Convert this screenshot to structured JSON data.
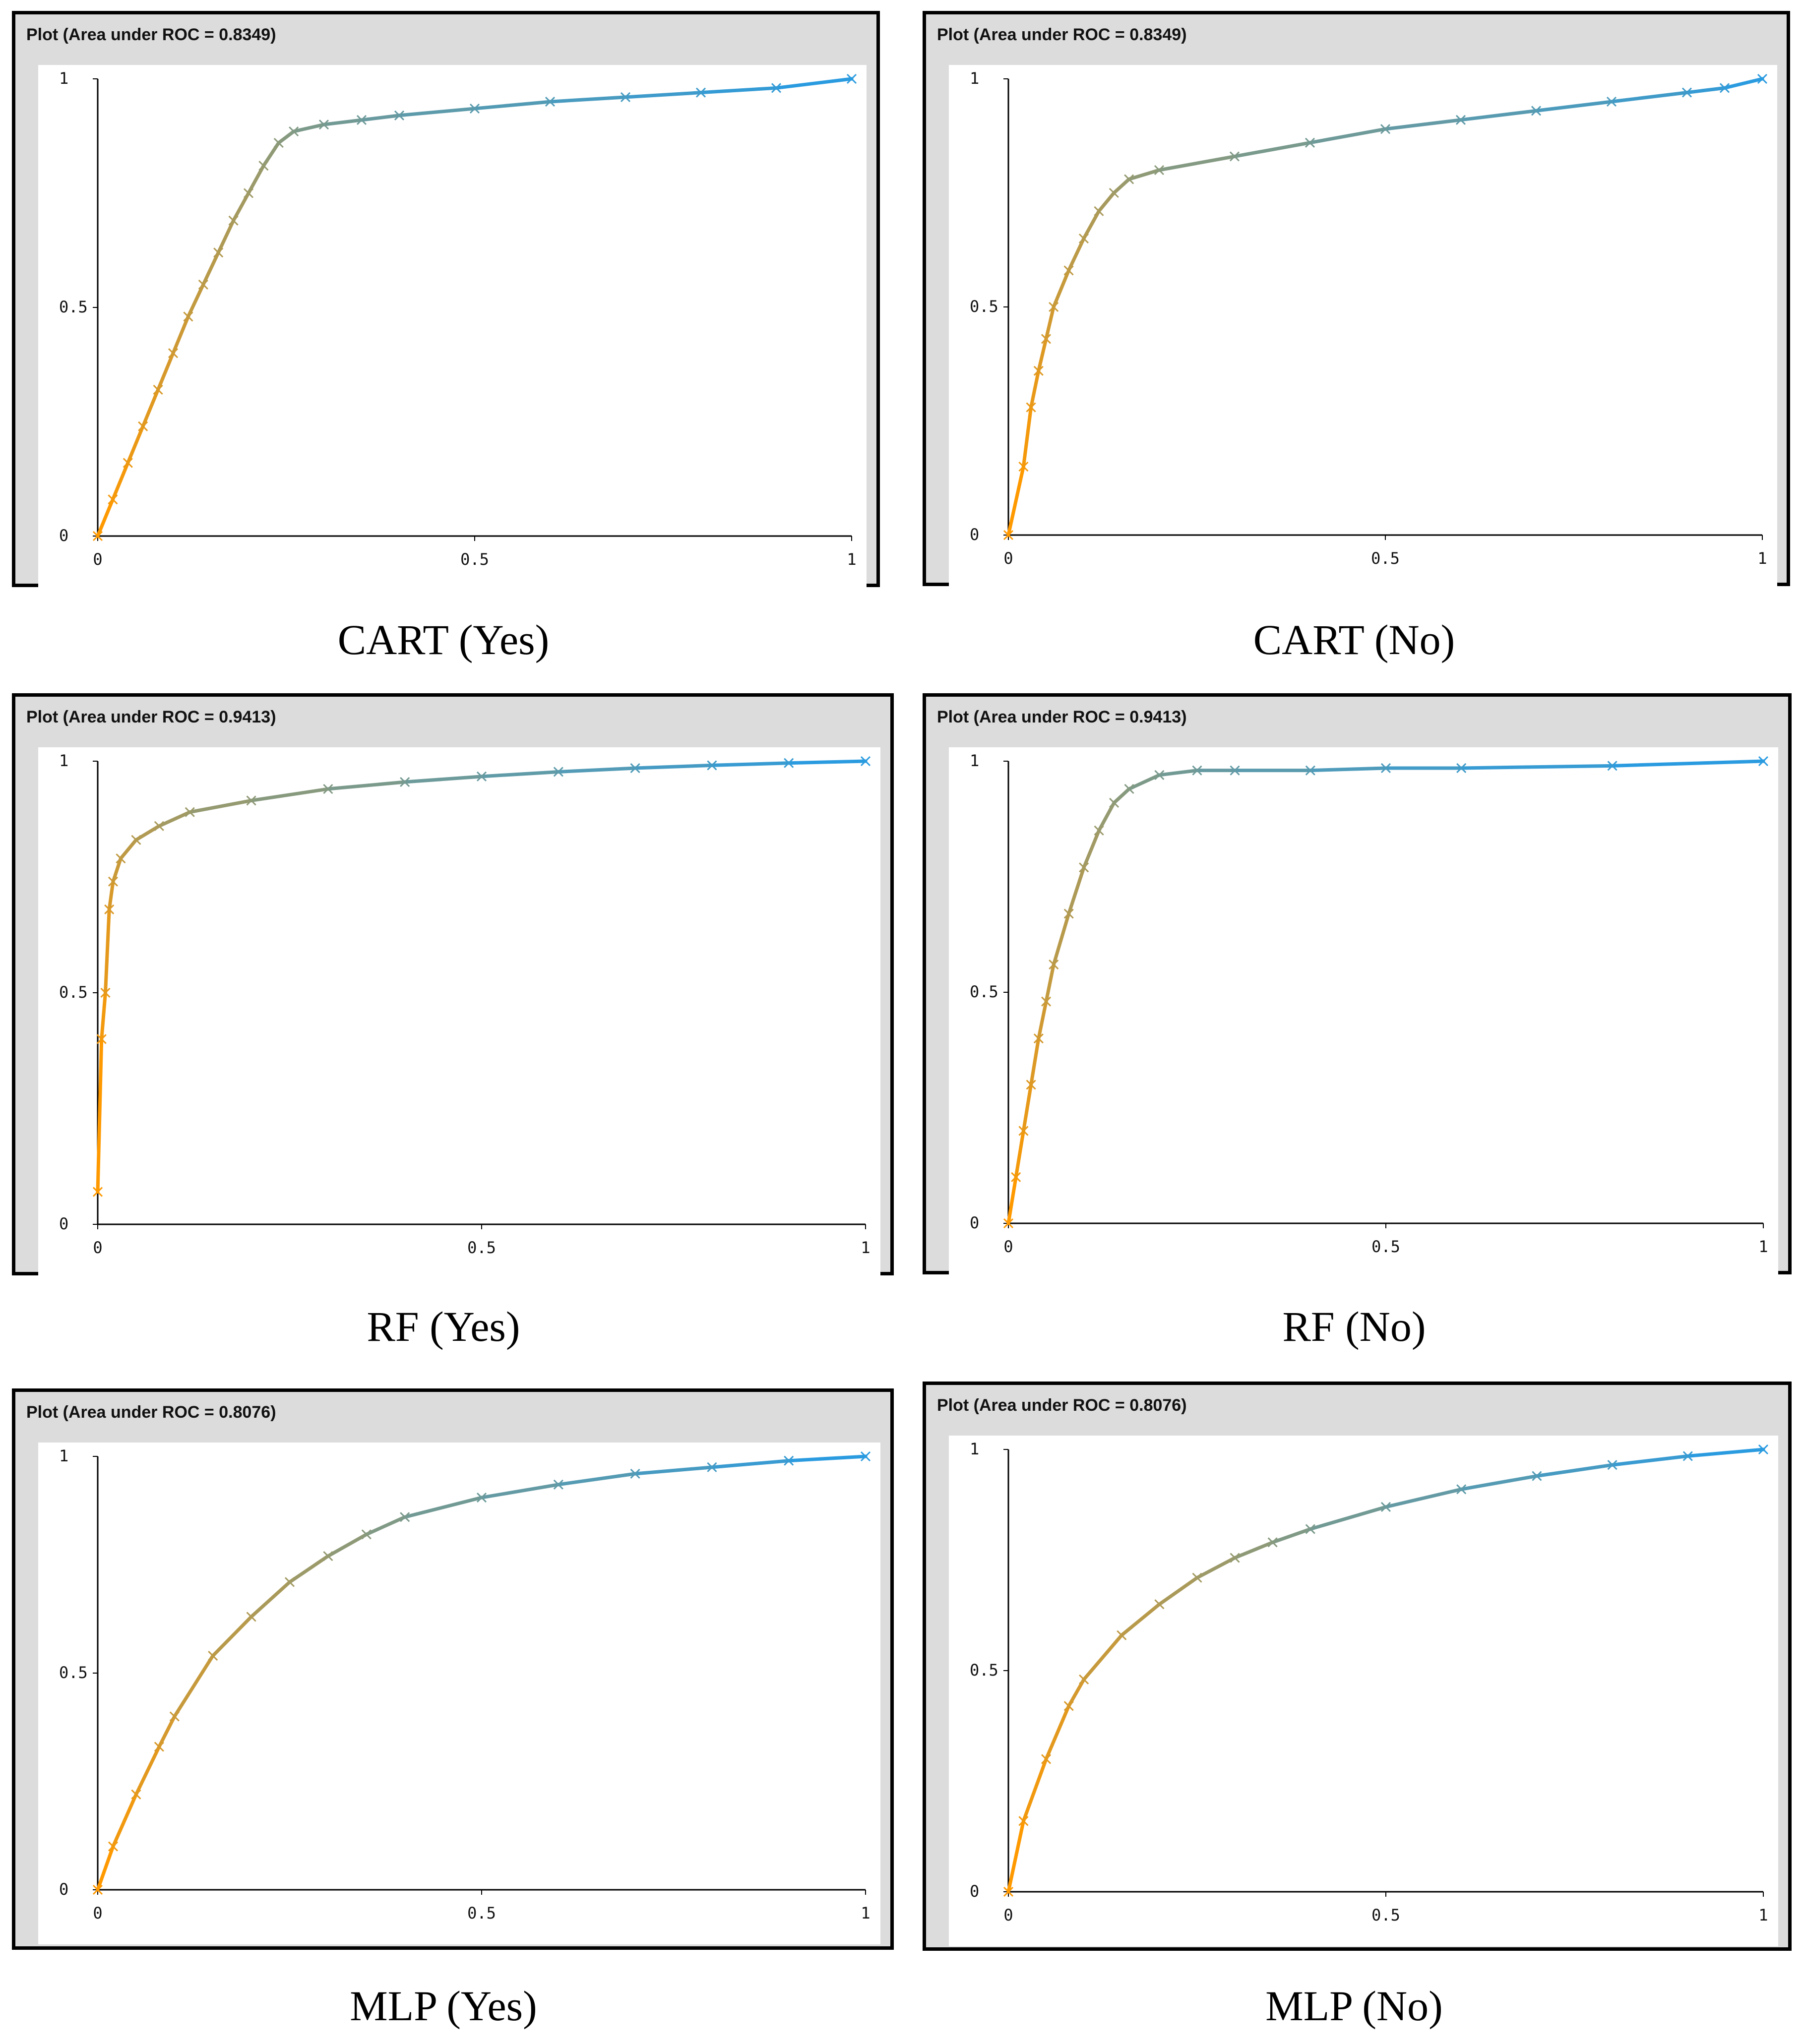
{
  "panels": [
    {
      "title": "Plot (Area under ROC = 0.8349)",
      "caption": "CART (Yes)",
      "x_ticks": [
        "0",
        "0.5",
        "1"
      ],
      "y_ticks": [
        "0",
        "0.5",
        "1"
      ]
    },
    {
      "title": "Plot (Area under ROC = 0.8349)",
      "caption": "CART (No)",
      "x_ticks": [
        "0",
        "0.5",
        "1"
      ],
      "y_ticks": [
        "0",
        "0.5",
        "1"
      ]
    },
    {
      "title": "Plot (Area under ROC = 0.9413)",
      "caption": "RF (Yes)",
      "x_ticks": [
        "0",
        "0.5",
        "1"
      ],
      "y_ticks": [
        "0",
        "0.5",
        "1"
      ]
    },
    {
      "title": "Plot (Area under ROC = 0.9413)",
      "caption": "RF (No)",
      "x_ticks": [
        "0",
        "0.5",
        "1"
      ],
      "y_ticks": [
        "0",
        "0.5",
        "1"
      ]
    },
    {
      "title": "Plot (Area under ROC = 0.8076)",
      "caption": "MLP (Yes)",
      "x_ticks": [
        "0",
        "0.5",
        "1"
      ],
      "y_ticks": [
        "0",
        "0.5",
        "1"
      ]
    },
    {
      "title": "Plot (Area under ROC = 0.8076)",
      "caption": "MLP (No)",
      "x_ticks": [
        "0",
        "0.5",
        "1"
      ],
      "y_ticks": [
        "0",
        "0.5",
        "1"
      ]
    }
  ],
  "colors": {
    "curve_start": "#ff9900",
    "curve_end": "#2b9be0",
    "axis": "#000000",
    "panel_bg": "#dcdcdc",
    "plot_bg": "#ffffff"
  },
  "chart_data": [
    {
      "type": "line",
      "title": "Plot (Area under ROC = 0.8349)",
      "caption": "CART (Yes)",
      "xlim": [
        0,
        1
      ],
      "ylim": [
        0,
        1
      ],
      "x_ticks": [
        0,
        0.5,
        1
      ],
      "y_ticks": [
        0,
        0.5,
        1
      ],
      "grid": false,
      "x": [
        0,
        0.02,
        0.04,
        0.06,
        0.08,
        0.1,
        0.12,
        0.14,
        0.16,
        0.18,
        0.2,
        0.22,
        0.24,
        0.26,
        0.3,
        0.35,
        0.4,
        0.5,
        0.6,
        0.7,
        0.8,
        0.9,
        1.0
      ],
      "y": [
        0,
        0.08,
        0.16,
        0.24,
        0.32,
        0.4,
        0.48,
        0.55,
        0.62,
        0.69,
        0.75,
        0.81,
        0.86,
        0.885,
        0.9,
        0.91,
        0.92,
        0.935,
        0.95,
        0.96,
        0.97,
        0.98,
        1.0
      ]
    },
    {
      "type": "line",
      "title": "Plot (Area under ROC = 0.8349)",
      "caption": "CART (No)",
      "xlim": [
        0,
        1
      ],
      "ylim": [
        0,
        1
      ],
      "x_ticks": [
        0,
        0.5,
        1
      ],
      "y_ticks": [
        0,
        0.5,
        1
      ],
      "grid": false,
      "x": [
        0,
        0.02,
        0.03,
        0.04,
        0.05,
        0.06,
        0.08,
        0.1,
        0.12,
        0.14,
        0.16,
        0.2,
        0.3,
        0.4,
        0.5,
        0.6,
        0.7,
        0.8,
        0.9,
        0.95,
        1.0
      ],
      "y": [
        0,
        0.15,
        0.28,
        0.36,
        0.43,
        0.5,
        0.58,
        0.65,
        0.71,
        0.75,
        0.78,
        0.8,
        0.83,
        0.86,
        0.89,
        0.91,
        0.93,
        0.95,
        0.97,
        0.98,
        1.0
      ]
    },
    {
      "type": "line",
      "title": "Plot (Area under ROC = 0.9413)",
      "caption": "RF (Yes)",
      "xlim": [
        0,
        1
      ],
      "ylim": [
        0,
        1
      ],
      "x_ticks": [
        0,
        0.5,
        1
      ],
      "y_ticks": [
        0,
        0.5,
        1
      ],
      "grid": false,
      "x": [
        0,
        0.005,
        0.01,
        0.015,
        0.02,
        0.03,
        0.05,
        0.08,
        0.12,
        0.2,
        0.3,
        0.4,
        0.5,
        0.6,
        0.7,
        0.8,
        0.9,
        1.0
      ],
      "y": [
        0.07,
        0.4,
        0.5,
        0.68,
        0.74,
        0.79,
        0.83,
        0.86,
        0.89,
        0.915,
        0.94,
        0.955,
        0.967,
        0.977,
        0.985,
        0.991,
        0.996,
        1.0
      ]
    },
    {
      "type": "line",
      "title": "Plot (Area under ROC = 0.9413)",
      "caption": "RF (No)",
      "xlim": [
        0,
        1
      ],
      "ylim": [
        0,
        1
      ],
      "x_ticks": [
        0,
        0.5,
        1
      ],
      "y_ticks": [
        0,
        0.5,
        1
      ],
      "grid": false,
      "x": [
        0,
        0.01,
        0.02,
        0.03,
        0.04,
        0.05,
        0.06,
        0.08,
        0.1,
        0.12,
        0.14,
        0.16,
        0.2,
        0.25,
        0.3,
        0.4,
        0.5,
        0.6,
        0.8,
        1.0
      ],
      "y": [
        0,
        0.1,
        0.2,
        0.3,
        0.4,
        0.48,
        0.56,
        0.67,
        0.77,
        0.85,
        0.91,
        0.94,
        0.97,
        0.98,
        0.98,
        0.98,
        0.985,
        0.985,
        0.99,
        1.0
      ]
    },
    {
      "type": "line",
      "title": "Plot (Area under ROC = 0.8076)",
      "caption": "MLP (Yes)",
      "xlim": [
        0,
        1
      ],
      "ylim": [
        0,
        1
      ],
      "x_ticks": [
        0,
        0.5,
        1
      ],
      "y_ticks": [
        0,
        0.5,
        1
      ],
      "grid": false,
      "x": [
        0,
        0.02,
        0.05,
        0.08,
        0.1,
        0.15,
        0.2,
        0.25,
        0.3,
        0.35,
        0.4,
        0.5,
        0.6,
        0.7,
        0.8,
        0.9,
        1.0
      ],
      "y": [
        0,
        0.1,
        0.22,
        0.33,
        0.4,
        0.54,
        0.63,
        0.71,
        0.77,
        0.82,
        0.86,
        0.905,
        0.935,
        0.96,
        0.975,
        0.99,
        1.0
      ]
    },
    {
      "type": "line",
      "title": "Plot (Area under ROC = 0.8076)",
      "caption": "MLP (No)",
      "xlim": [
        0,
        1
      ],
      "ylim": [
        0,
        1
      ],
      "x_ticks": [
        0,
        0.5,
        1
      ],
      "y_ticks": [
        0,
        0.5,
        1
      ],
      "grid": false,
      "x": [
        0,
        0.02,
        0.05,
        0.08,
        0.1,
        0.15,
        0.2,
        0.25,
        0.3,
        0.35,
        0.4,
        0.5,
        0.6,
        0.7,
        0.8,
        0.9,
        1.0
      ],
      "y": [
        0,
        0.16,
        0.3,
        0.42,
        0.48,
        0.58,
        0.65,
        0.71,
        0.755,
        0.79,
        0.82,
        0.87,
        0.91,
        0.94,
        0.965,
        0.985,
        1.0
      ]
    }
  ]
}
